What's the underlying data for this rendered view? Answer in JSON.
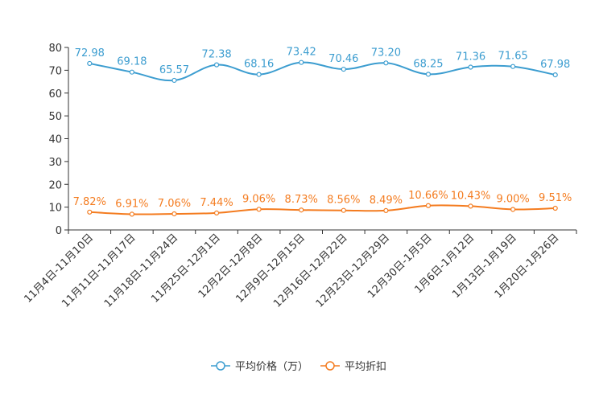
{
  "chart_data": {
    "type": "line",
    "categories": [
      "11月4日-11月10日",
      "11月11日-11月17日",
      "11月18日-11月24日",
      "11月25日-12月1日",
      "12月2日-12月8日",
      "12月9日-12月15日",
      "12月16日-12月22日",
      "12月23日-12月29日",
      "12月30日-1月5日",
      "1月6日-1月12日",
      "1月13日-1月19日",
      "1月20日-1月26日"
    ],
    "series": [
      {
        "name": "平均价格（万）",
        "color": "#3c9dd0",
        "values": [
          72.98,
          69.18,
          65.57,
          72.38,
          68.16,
          73.42,
          70.46,
          73.2,
          68.25,
          71.36,
          71.65,
          67.98
        ],
        "labels": [
          "72.98",
          "69.18",
          "65.57",
          "72.38",
          "68.16",
          "73.42",
          "70.46",
          "73.20",
          "68.25",
          "71.36",
          "71.65",
          "67.98"
        ]
      },
      {
        "name": "平均折扣",
        "color": "#f47c20",
        "values": [
          7.82,
          6.91,
          7.06,
          7.44,
          9.06,
          8.73,
          8.56,
          8.49,
          10.66,
          10.43,
          9.0,
          9.51
        ],
        "labels": [
          "7.82%",
          "6.91%",
          "7.06%",
          "7.44%",
          "9.06%",
          "8.73%",
          "8.56%",
          "8.49%",
          "10.66%",
          "10.43%",
          "9.00%",
          "9.51%"
        ]
      }
    ],
    "y_ticks": [
      "0",
      "10",
      "20",
      "30",
      "40",
      "50",
      "60",
      "70",
      "80"
    ],
    "ylim": [
      0,
      80
    ],
    "title": "",
    "xlabel": "",
    "ylabel": "",
    "legend_position": "bottom"
  }
}
